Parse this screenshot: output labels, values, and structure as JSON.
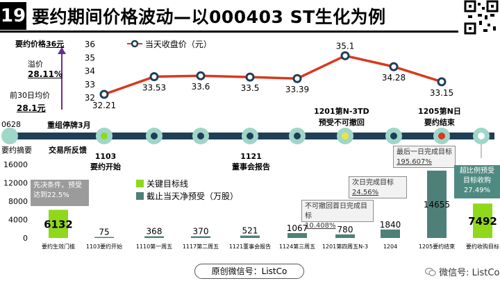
{
  "header": {
    "number": "19",
    "title": "要约期间价格波动—以000403 ST生化为例"
  },
  "left_panel": {
    "offer_price_label": "要约价格",
    "offer_price_value": "36元",
    "premium_label": "溢价",
    "premium_value": "28.11%",
    "avg30_label": "前30日均价",
    "avg30_value": "28.1元"
  },
  "timeline": {
    "start_date": "0628",
    "suspend_label": "重组停牌3月",
    "summary_label": "要约摘要",
    "exchange_label": "交易所反馈",
    "start_label_1": "1103",
    "start_label_2": "要约开始",
    "board_label_1": "1121",
    "board_label_2": "董事会报告",
    "n3_label_1": "1201第N-3TD",
    "n3_label_2": "预受不可撤回",
    "end_label_1": "1205第N日",
    "end_label_2": "要约结束"
  },
  "annotations": {
    "precondition": "先决条件，预受达到22.5%",
    "key_target_legend": "关键目标线",
    "net_accept_legend": "截止当天净预受（万股）",
    "next_day": "次日完成目标",
    "next_day_value": "24.56%",
    "irrevocable": "不可撤回首日完成目标",
    "irrevocable_value": "10.408%",
    "last_day": "最后一日完成目标",
    "last_day_value": "195.607%",
    "excess_title": "超比例预受",
    "excess_sub": "目标收购",
    "excess_value": "27.49%"
  },
  "footer": {
    "text": "原创微信号：ListCo",
    "watermark": "微信号: ListCo"
  },
  "colors": {
    "line": "#d73a1e",
    "timeline": "#1f3e57",
    "green": "#8fd81c",
    "bar": "#4f7f79",
    "node": "#9fd6c8"
  },
  "chart_data": [
    {
      "type": "line",
      "series": [
        {
          "name": "当天收盘价（元）",
          "values": [
            32.21,
            33.53,
            33.6,
            33.5,
            33.39,
            35.1,
            34.28,
            33.15
          ]
        }
      ],
      "data_labels": [
        "32.21",
        "33.53",
        "33.6",
        "33.5",
        "33.39",
        "35.1",
        "34.28",
        "33.15"
      ],
      "y_ticks": [
        "36",
        "35",
        "34",
        "33",
        "32"
      ],
      "ylim": [
        32,
        36
      ],
      "grid": false,
      "legend_position": "top"
    },
    {
      "type": "bar",
      "categories": [
        "要约生效门槛",
        "1103要约开始",
        "1110第一周五",
        "1117第二周五",
        "1121董事会报告",
        "1124第三周五",
        "1201第四周五N-3",
        "1204",
        "1205要约结束",
        "要约收购目标"
      ],
      "values": [
        6132,
        75,
        368,
        370,
        521,
        1067,
        780,
        1840,
        14655,
        7492
      ],
      "value_labels": [
        "6132",
        "75",
        "368",
        "370",
        "521",
        "1067",
        "780",
        "1840",
        "14655",
        "7492"
      ],
      "y_ticks": [
        "16000",
        "12000",
        "8000",
        "4000",
        "0"
      ],
      "ylim": [
        0,
        16000
      ],
      "key_bars": [
        0,
        9
      ]
    }
  ]
}
